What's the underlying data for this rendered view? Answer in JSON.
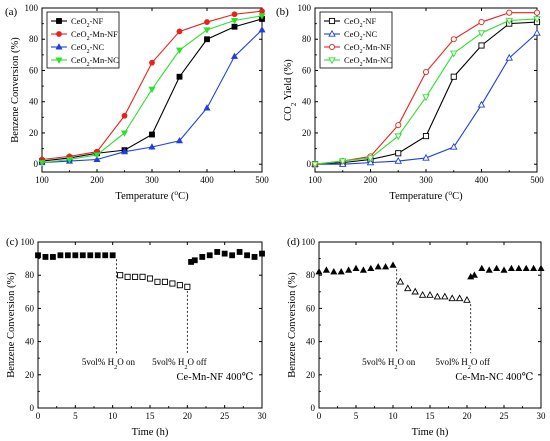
{
  "chart_data": [
    {
      "type": "line",
      "panel_label": "(a)",
      "xlabel": "Temperature (°C)",
      "ylabel": "Benzene Conversion (%)",
      "xlim": [
        100,
        500
      ],
      "ylim": [
        -5,
        100
      ],
      "xticks": [
        100,
        200,
        300,
        400,
        500
      ],
      "yticks": [
        0,
        20,
        40,
        60,
        80,
        100
      ],
      "legend_position": "top-left",
      "x": [
        100,
        150,
        200,
        250,
        300,
        350,
        400,
        450,
        500
      ],
      "series": [
        {
          "name": "CeO2-NF",
          "color": "#000000",
          "marker": "square",
          "values": [
            2,
            4,
            7,
            9,
            19,
            56,
            80,
            88,
            93
          ]
        },
        {
          "name": "CeO2-Mn-NF",
          "color": "#e8221b",
          "marker": "circle",
          "values": [
            3,
            5,
            8,
            31,
            65,
            85,
            91,
            96,
            98
          ]
        },
        {
          "name": "CeO2-NC",
          "color": "#1f3fe0",
          "marker": "triangle-up",
          "values": [
            1,
            2,
            3,
            8,
            11,
            15,
            36,
            69,
            86
          ]
        },
        {
          "name": "CeO2-Mn-NC",
          "color": "#2ee02e",
          "marker": "triangle-down",
          "values": [
            1,
            3,
            6,
            20,
            48,
            73,
            86,
            92,
            95
          ]
        }
      ]
    },
    {
      "type": "line",
      "panel_label": "(b)",
      "xlabel": "Temperature (°C)",
      "ylabel": "CO2 Yield (%)",
      "xlim": [
        100,
        500
      ],
      "ylim": [
        -5,
        100
      ],
      "xticks": [
        100,
        200,
        300,
        400,
        500
      ],
      "yticks": [
        0,
        20,
        40,
        60,
        80,
        100
      ],
      "legend_position": "top-left",
      "x": [
        100,
        150,
        200,
        250,
        300,
        350,
        400,
        450,
        500
      ],
      "series": [
        {
          "name": "CeO2-NF",
          "color": "#000000",
          "marker": "square-open",
          "values": [
            0,
            1,
            3,
            7,
            18,
            56,
            76,
            90,
            91
          ]
        },
        {
          "name": "CeO2-NC",
          "color": "#1f3fe0",
          "marker": "triangle-up-open",
          "values": [
            0,
            0,
            1,
            2,
            4,
            11,
            38,
            68,
            84
          ]
        },
        {
          "name": "CeO2-Mn-NF",
          "color": "#e8221b",
          "marker": "circle-open",
          "values": [
            0,
            2,
            5,
            25,
            59,
            80,
            91,
            97,
            97
          ]
        },
        {
          "name": "CeO2-Mn-NC",
          "color": "#2ee02e",
          "marker": "triangle-down-open",
          "values": [
            0,
            2,
            4,
            18,
            43,
            71,
            84,
            92,
            93
          ]
        }
      ]
    },
    {
      "type": "scatter",
      "panel_label": "(c)",
      "xlabel": "Time (h)",
      "ylabel": "Benzene Conversion (%)",
      "xlim": [
        0,
        30
      ],
      "ylim": [
        0,
        100
      ],
      "xticks": [
        0,
        5,
        10,
        15,
        20,
        25,
        30
      ],
      "yticks": [
        0,
        20,
        40,
        60,
        80,
        100
      ],
      "annotations": [
        {
          "text": "5vol% H2O on",
          "x": 10.5
        },
        {
          "text": "5vol% H2O off",
          "x": 20
        }
      ],
      "note": "Ce-Mn-NF 400℃",
      "series": [
        {
          "name": "",
          "marker": "square",
          "x": [
            0,
            1,
            2,
            3,
            4,
            5,
            6,
            7,
            8,
            9,
            10
          ],
          "values": [
            92,
            91,
            91,
            92,
            92,
            92,
            92,
            92,
            92,
            92,
            92
          ]
        },
        {
          "name": "",
          "marker": "square-open",
          "x": [
            11,
            12,
            13,
            14,
            15,
            16,
            17,
            18,
            19,
            20
          ],
          "values": [
            80,
            79,
            79,
            79,
            78,
            76,
            76,
            75,
            74,
            73
          ]
        },
        {
          "name": "",
          "marker": "square",
          "x": [
            20.5,
            21,
            22,
            23,
            24,
            25,
            26,
            27,
            28,
            29,
            30
          ],
          "values": [
            88,
            89,
            91,
            92,
            94,
            93,
            92,
            94,
            92,
            91,
            93
          ]
        }
      ]
    },
    {
      "type": "scatter",
      "panel_label": "(d)",
      "xlabel": "Time (h)",
      "ylabel": "Benzene Conversion (%)",
      "xlim": [
        0,
        30
      ],
      "ylim": [
        0,
        100
      ],
      "xticks": [
        0,
        5,
        10,
        15,
        20,
        25,
        30
      ],
      "yticks": [
        0,
        20,
        40,
        60,
        80,
        100
      ],
      "annotations": [
        {
          "text": "5vol% H2O on",
          "x": 10.5
        },
        {
          "text": "5vol% H2O off",
          "x": 20.5
        }
      ],
      "note": "Ce-Mn-NC 400℃",
      "series": [
        {
          "name": "",
          "marker": "triangle-up",
          "x": [
            0,
            1,
            2,
            3,
            4,
            5,
            6,
            7,
            8,
            9,
            10
          ],
          "values": [
            82,
            83,
            82,
            82,
            83,
            84,
            83,
            84,
            85,
            85,
            86
          ]
        },
        {
          "name": "",
          "marker": "triangle-up-open",
          "x": [
            11,
            12,
            13,
            14,
            15,
            16,
            17,
            18,
            19,
            20
          ],
          "values": [
            76,
            72,
            70,
            68,
            68,
            67,
            67,
            66,
            66,
            65
          ]
        },
        {
          "name": "",
          "marker": "triangle-up",
          "x": [
            20.5,
            21,
            22,
            23,
            24,
            25,
            26,
            27,
            28,
            29,
            30
          ],
          "values": [
            79,
            80,
            84,
            83,
            84,
            83,
            84,
            84,
            84,
            84,
            84
          ]
        }
      ]
    }
  ]
}
